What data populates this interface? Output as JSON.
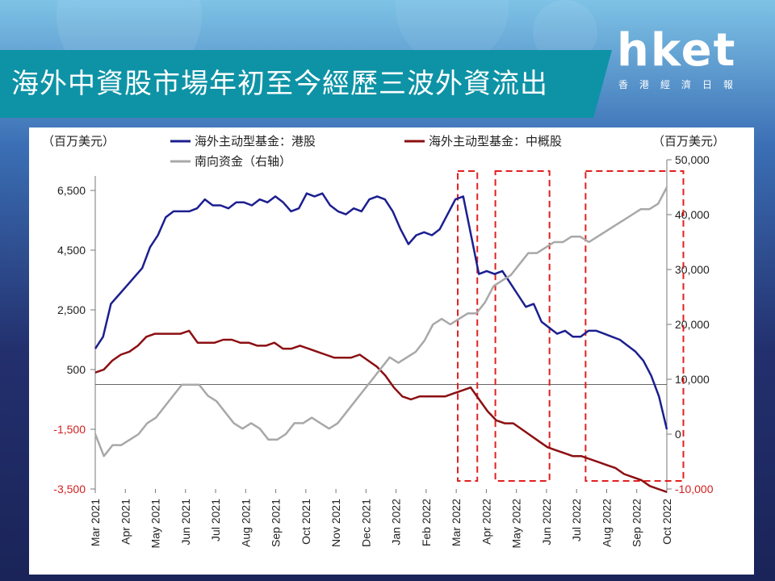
{
  "title": "海外中資股市場年初至今經歷三波外資流出",
  "logo": {
    "main": "hket",
    "sub": "香港經濟日報"
  },
  "chart_data": {
    "type": "line",
    "unit_left": "（百万美元）",
    "unit_right": "（百万美元）",
    "legend": [
      "海外主动型基金：港股",
      "海外主动型基金：中概股",
      "南向资金（右轴）"
    ],
    "x_labels": [
      "Mar 2021",
      "Apr 2021",
      "May 2021",
      "Jun 2021",
      "Jul 2021",
      "Aug 2021",
      "Sep 2021",
      "Oct 2021",
      "Nov 2021",
      "Dec 2021",
      "Jan 2022",
      "Feb 2022",
      "Mar 2022",
      "Apr 2022",
      "May 2022",
      "Jun 2022",
      "Jul 2022",
      "Aug 2022",
      "Sep 2022",
      "Oct 2022"
    ],
    "y_left": {
      "ticks": [
        "6,500",
        "4,500",
        "2,500",
        "500",
        "-1,500",
        "-3,500"
      ],
      "tick_values": [
        6500,
        4500,
        2500,
        500,
        -1500,
        -3500
      ],
      "range": [
        -3500,
        7500
      ]
    },
    "y_right": {
      "ticks": [
        "50,000",
        "40,000",
        "30,000",
        "20,000",
        "10,000",
        "0",
        "-10,000"
      ],
      "tick_values": [
        50000,
        40000,
        30000,
        20000,
        10000,
        0,
        -10000
      ],
      "range": [
        -10000,
        50000
      ]
    },
    "series": [
      {
        "name": "海外主动型基金：港股",
        "color": "#1c1f8f",
        "axis": "left",
        "values": [
          1200,
          1600,
          2700,
          3000,
          3300,
          3600,
          3900,
          4600,
          5000,
          5600,
          5800,
          5800,
          5800,
          5900,
          6200,
          6000,
          6000,
          5900,
          6100,
          6100,
          6000,
          6200,
          6100,
          6300,
          6100,
          5800,
          5900,
          6400,
          6300,
          6400,
          6000,
          5800,
          5700,
          5900,
          5800,
          6200,
          6300,
          6200,
          5800,
          5200,
          4700,
          5000,
          5100,
          5000,
          5200,
          5700,
          6200,
          6300,
          5000,
          3700,
          3800,
          3700,
          3800,
          3400,
          3000,
          2600,
          2700,
          2100,
          1900,
          1700,
          1800,
          1600,
          1600,
          1800,
          1800,
          1700,
          1600,
          1500,
          1300,
          1100,
          800,
          300,
          -400,
          -1500
        ]
      },
      {
        "name": "海外主动型基金：中概股",
        "color": "#8b0f12",
        "axis": "left",
        "values": [
          400,
          500,
          800,
          1000,
          1100,
          1300,
          1600,
          1700,
          1700,
          1700,
          1700,
          1800,
          1400,
          1400,
          1400,
          1500,
          1500,
          1400,
          1400,
          1300,
          1300,
          1400,
          1200,
          1200,
          1300,
          1200,
          1100,
          1000,
          900,
          900,
          900,
          1000,
          800,
          600,
          300,
          -100,
          -400,
          -500,
          -400,
          -400,
          -400,
          -400,
          -300,
          -200,
          -100,
          -500,
          -900,
          -1200,
          -1300,
          -1300,
          -1500,
          -1700,
          -1900,
          -2100,
          -2200,
          -2300,
          -2400,
          -2400,
          -2500,
          -2600,
          -2700,
          -2800,
          -3000,
          -3100,
          -3200,
          -3400,
          -3500,
          -3600
        ]
      },
      {
        "name": "南向资金（右轴）",
        "color": "#a8a8a8",
        "axis": "right",
        "values": [
          0,
          -4000,
          -2000,
          -2000,
          -1000,
          0,
          2000,
          3000,
          5000,
          7000,
          9000,
          9000,
          9000,
          7000,
          6000,
          4000,
          2000,
          1000,
          2000,
          1000,
          -1000,
          -1000,
          0,
          2000,
          2000,
          3000,
          2000,
          1000,
          2000,
          4000,
          6000,
          8000,
          10000,
          12000,
          14000,
          13000,
          14000,
          15000,
          17000,
          20000,
          21000,
          20000,
          21000,
          22000,
          22000,
          24000,
          27000,
          28000,
          29000,
          31000,
          33000,
          33000,
          34000,
          35000,
          35000,
          36000,
          36000,
          35000,
          36000,
          37000,
          38000,
          39000,
          40000,
          41000,
          41000,
          42000,
          45000
        ]
      }
    ],
    "highlight_ranges_x": [
      [
        12.05,
        12.7
      ],
      [
        13.3,
        15.1
      ],
      [
        16.3,
        19.55
      ]
    ]
  }
}
